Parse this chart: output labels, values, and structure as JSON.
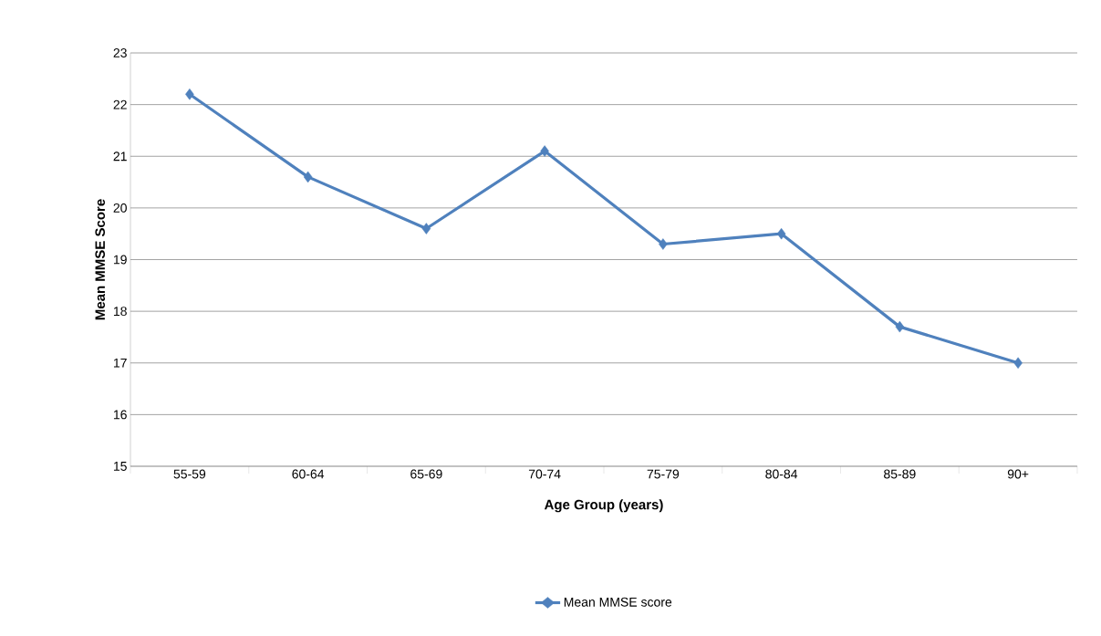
{
  "chart_data": {
    "type": "line",
    "xlabel": "Age Group (years)",
    "ylabel": "Mean MMSE Score",
    "categories": [
      "55-59",
      "60-64",
      "65-69",
      "70-74",
      "75-79",
      "80-84",
      "85-89",
      "90+"
    ],
    "series": [
      {
        "name": "Mean MMSE score",
        "color": "#4f81bd",
        "values": [
          22.2,
          20.6,
          19.6,
          21.1,
          19.3,
          19.5,
          17.7,
          17.0
        ]
      }
    ],
    "ylim": [
      15,
      23
    ],
    "yticks": [
      15,
      16,
      17,
      18,
      19,
      20,
      21,
      22,
      23
    ],
    "grid": "y",
    "legend": "bottom",
    "marker": "diamond",
    "line_style": "solid"
  }
}
